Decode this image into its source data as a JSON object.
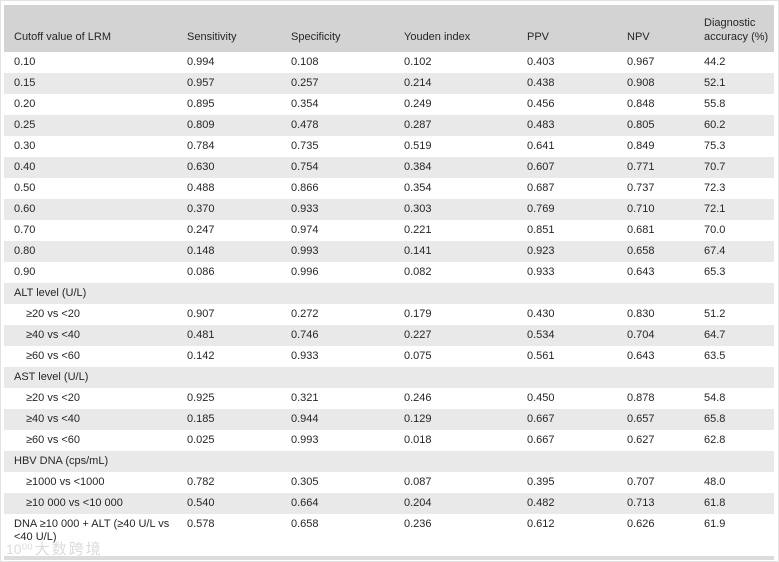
{
  "colors": {
    "header_bg": "#d3d3d3",
    "stripe_bg": "#e9e9e9",
    "text": "#262626",
    "bottom_bar": "#dcdcdc",
    "watermark": "#bfbfbf",
    "frame": "#e2e2e2"
  },
  "table": {
    "columns": [
      "Cutoff value of LRM",
      "Sensitivity",
      "Specificity",
      "Youden index",
      "PPV",
      "NPV",
      "Diagnostic accuracy (%)"
    ],
    "rows": [
      {
        "type": "data",
        "label": "0.10",
        "values": [
          "0.994",
          "0.108",
          "0.102",
          "0.403",
          "0.967",
          "44.2"
        ]
      },
      {
        "type": "data",
        "label": "0.15",
        "values": [
          "0.957",
          "0.257",
          "0.214",
          "0.438",
          "0.908",
          "52.1"
        ]
      },
      {
        "type": "data",
        "label": "0.20",
        "values": [
          "0.895",
          "0.354",
          "0.249",
          "0.456",
          "0.848",
          "55.8"
        ]
      },
      {
        "type": "data",
        "label": "0.25",
        "values": [
          "0.809",
          "0.478",
          "0.287",
          "0.483",
          "0.805",
          "60.2"
        ]
      },
      {
        "type": "data",
        "label": "0.30",
        "values": [
          "0.784",
          "0.735",
          "0.519",
          "0.641",
          "0.849",
          "75.3"
        ]
      },
      {
        "type": "data",
        "label": "0.40",
        "values": [
          "0.630",
          "0.754",
          "0.384",
          "0.607",
          "0.771",
          "70.7"
        ]
      },
      {
        "type": "data",
        "label": "0.50",
        "values": [
          "0.488",
          "0.866",
          "0.354",
          "0.687",
          "0.737",
          "72.3"
        ]
      },
      {
        "type": "data",
        "label": "0.60",
        "values": [
          "0.370",
          "0.933",
          "0.303",
          "0.769",
          "0.710",
          "72.1"
        ]
      },
      {
        "type": "data",
        "label": "0.70",
        "values": [
          "0.247",
          "0.974",
          "0.221",
          "0.851",
          "0.681",
          "70.0"
        ]
      },
      {
        "type": "data",
        "label": "0.80",
        "values": [
          "0.148",
          "0.993",
          "0.141",
          "0.923",
          "0.658",
          "67.4"
        ]
      },
      {
        "type": "data",
        "label": "0.90",
        "values": [
          "0.086",
          "0.996",
          "0.082",
          "0.933",
          "0.643",
          "65.3"
        ]
      },
      {
        "type": "section",
        "label": "ALT level (U/L)"
      },
      {
        "type": "data",
        "indent": true,
        "label": "≥20 vs <20",
        "values": [
          "0.907",
          "0.272",
          "0.179",
          "0.430",
          "0.830",
          "51.2"
        ]
      },
      {
        "type": "data",
        "indent": true,
        "label": "≥40 vs <40",
        "values": [
          "0.481",
          "0.746",
          "0.227",
          "0.534",
          "0.704",
          "64.7"
        ]
      },
      {
        "type": "data",
        "indent": true,
        "label": "≥60 vs <60",
        "values": [
          "0.142",
          "0.933",
          "0.075",
          "0.561",
          "0.643",
          "63.5"
        ]
      },
      {
        "type": "section",
        "label": "AST level (U/L)"
      },
      {
        "type": "data",
        "indent": true,
        "label": "≥20 vs <20",
        "values": [
          "0.925",
          "0.321",
          "0.246",
          "0.450",
          "0.878",
          "54.8"
        ]
      },
      {
        "type": "data",
        "indent": true,
        "label": "≥40 vs <40",
        "values": [
          "0.185",
          "0.944",
          "0.129",
          "0.667",
          "0.657",
          "65.8"
        ]
      },
      {
        "type": "data",
        "indent": true,
        "label": "≥60 vs <60",
        "values": [
          "0.025",
          "0.993",
          "0.018",
          "0.667",
          "0.627",
          "62.8"
        ]
      },
      {
        "type": "section",
        "label": "HBV DNA (cps/mL)"
      },
      {
        "type": "data",
        "indent": true,
        "label": "≥1000 vs <1000",
        "values": [
          "0.782",
          "0.305",
          "0.087",
          "0.395",
          "0.707",
          "48.0"
        ]
      },
      {
        "type": "data",
        "indent": true,
        "label": "≥10 000 vs <10 000",
        "values": [
          "0.540",
          "0.664",
          "0.204",
          "0.482",
          "0.713",
          "61.8"
        ]
      },
      {
        "type": "data",
        "label": "DNA ≥10 000 + ALT (≥40 U/L vs <40 U/L)",
        "values": [
          "0.578",
          "0.658",
          "0.236",
          "0.612",
          "0.626",
          "61.9"
        ]
      }
    ]
  },
  "watermark": {
    "prefix": "10⁰⁰",
    "text": "大数跨境"
  }
}
